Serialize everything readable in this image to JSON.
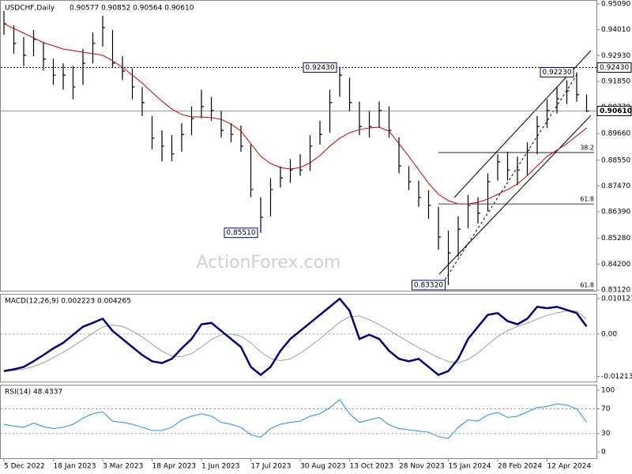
{
  "chart_data": [
    {
      "type": "hlc",
      "title": "USDCHF,Daily",
      "quote": "0.90577 0.90852 0.90564 0.90610",
      "watermark": "ActionForex.com",
      "categories": [
        "5 Dec 2022",
        null,
        null,
        null,
        null,
        "18 Jan 2023",
        null,
        null,
        null,
        null,
        "3 Mar 2023",
        null,
        null,
        null,
        null,
        "18 Apr 2023",
        null,
        null,
        null,
        null,
        "1 Jun 2023",
        null,
        null,
        null,
        null,
        "17 Jul 2023",
        null,
        null,
        null,
        null,
        "30 Aug 2023",
        null,
        null,
        null,
        null,
        "13 Oct 2023",
        null,
        null,
        null,
        null,
        "28 Nov 2023",
        null,
        null,
        null,
        null,
        "15 Jan 2024",
        null,
        null,
        null,
        null,
        "28 Feb 2024",
        null,
        null,
        null,
        null,
        "12 Apr 2024",
        null,
        null,
        null,
        null
      ],
      "high": [
        0.948,
        0.942,
        0.937,
        0.94,
        0.935,
        0.928,
        0.926,
        0.925,
        0.932,
        0.939,
        0.946,
        0.94,
        0.929,
        0.924,
        0.916,
        0.904,
        0.898,
        0.896,
        0.901,
        0.908,
        0.915,
        0.912,
        0.906,
        0.901,
        0.9,
        0.892,
        0.87,
        0.878,
        0.883,
        0.886,
        0.888,
        0.896,
        0.902,
        0.915,
        0.9243,
        0.92,
        0.91,
        0.906,
        0.91,
        0.908,
        0.895,
        0.883,
        0.877,
        0.873,
        0.866,
        0.856,
        0.862,
        0.871,
        0.87,
        0.88,
        0.888,
        0.889,
        0.887,
        0.893,
        0.904,
        0.911,
        0.916,
        0.919,
        0.9223,
        0.913
      ],
      "low": [
        0.938,
        0.93,
        0.925,
        0.929,
        0.923,
        0.917,
        0.915,
        0.911,
        0.917,
        0.926,
        0.933,
        0.924,
        0.919,
        0.911,
        0.904,
        0.89,
        0.885,
        0.885,
        0.889,
        0.896,
        0.903,
        0.902,
        0.895,
        0.893,
        0.889,
        0.87,
        0.8551,
        0.862,
        0.874,
        0.876,
        0.879,
        0.881,
        0.892,
        0.897,
        0.912,
        0.906,
        0.896,
        0.895,
        0.899,
        0.895,
        0.88,
        0.873,
        0.866,
        0.861,
        0.848,
        0.8332,
        0.845,
        0.857,
        0.859,
        0.864,
        0.877,
        0.877,
        0.875,
        0.879,
        0.888,
        0.899,
        0.905,
        0.909,
        0.91,
        0.9056
      ],
      "close": [
        0.9426,
        0.9344,
        0.9294,
        0.936,
        0.9278,
        0.9211,
        0.9211,
        0.9162,
        0.9261,
        0.9344,
        0.941,
        0.9261,
        0.9228,
        0.9162,
        0.9096,
        0.8947,
        0.8914,
        0.8881,
        0.8963,
        0.9029,
        0.9079,
        0.9063,
        0.898,
        0.8963,
        0.8914,
        0.8732,
        0.8616,
        0.8732,
        0.8781,
        0.8814,
        0.8814,
        0.8914,
        0.8963,
        0.9096,
        0.9211,
        0.9096,
        0.8996,
        0.8996,
        0.9063,
        0.898,
        0.8831,
        0.8765,
        0.8699,
        0.8666,
        0.8533,
        0.8467,
        0.8566,
        0.8666,
        0.8633,
        0.8765,
        0.8848,
        0.8814,
        0.8814,
        0.8897,
        0.8996,
        0.9063,
        0.9112,
        0.9145,
        0.9129,
        0.9061
      ],
      "color": "#000000",
      "moving_average": {
        "color": "#cc0000",
        "values": [
          0.9426,
          0.9406,
          0.9387,
          0.9367,
          0.9347,
          0.9334,
          0.932,
          0.9314,
          0.9307,
          0.9301,
          0.9294,
          0.9271,
          0.9244,
          0.9211,
          0.9178,
          0.9139,
          0.9102,
          0.9069,
          0.9046,
          0.9036,
          0.9036,
          0.9033,
          0.9026,
          0.9006,
          0.8977,
          0.8924,
          0.8871,
          0.8841,
          0.8824,
          0.8818,
          0.8824,
          0.8844,
          0.8874,
          0.8914,
          0.8947,
          0.897,
          0.8983,
          0.899,
          0.8993,
          0.8977,
          0.8924,
          0.8871,
          0.8815,
          0.8758,
          0.8712,
          0.8686,
          0.8672,
          0.8672,
          0.8679,
          0.8692,
          0.8712,
          0.8732,
          0.8755,
          0.8791,
          0.8831,
          0.8871,
          0.8897,
          0.8924,
          0.8957,
          0.899
        ]
      },
      "ylim": [
        0.83086,
        0.95255
      ],
      "yticks": [
        {
          "value": 0.9509,
          "label": "0.95090"
        },
        {
          "value": 0.9401,
          "label": "0.94010"
        },
        {
          "value": 0.9293,
          "label": "0.92930"
        },
        {
          "value": 0.9185,
          "label": "0.91850"
        },
        {
          "value": 0.9077,
          "label": "0.90770"
        },
        {
          "value": 0.8966,
          "label": "0.89660"
        },
        {
          "value": 0.8855,
          "label": "0.88550"
        },
        {
          "value": 0.8747,
          "label": "0.87470"
        },
        {
          "value": 0.8639,
          "label": "0.86390"
        },
        {
          "value": 0.8528,
          "label": "0.85280"
        },
        {
          "value": 0.842,
          "label": "0.84200"
        },
        {
          "value": 0.8312,
          "label": "0.83120"
        }
      ],
      "annotations": [
        {
          "text": "0.85510",
          "value": 0.8551
        },
        {
          "text": "0.92430",
          "value": 0.9243
        },
        {
          "text": "0.83320",
          "value": 0.8332
        },
        {
          "text": "0.92230",
          "value": 0.9223
        }
      ],
      "price_markers": [
        {
          "label": "0.92430",
          "value": 0.9243,
          "style": "dashed"
        },
        {
          "label": "0.90610",
          "value": 0.9061,
          "style": "current"
        }
      ],
      "fib_levels": [
        {
          "label": "38.2",
          "value": 0.8887
        },
        {
          "label": "61.8",
          "value": 0.8672
        },
        {
          "label": "61.8",
          "value": 0.8312
        }
      ]
    },
    {
      "type": "line",
      "title": "MACD(12,26,9) 0.002223 0.004265",
      "series": [
        {
          "color": "#000080",
          "values": [
            -0.0106,
            -0.0101,
            -0.0094,
            -0.0078,
            -0.006,
            -0.0041,
            -0.0025,
            -0.0002,
            0.0021,
            0.0032,
            0.0044,
            0.0009,
            -0.0014,
            -0.0037,
            -0.006,
            -0.0078,
            -0.0083,
            -0.0071,
            -0.0041,
            -0.0014,
            0.0028,
            0.0032,
            0.0009,
            -0.0014,
            -0.0037,
            -0.0094,
            -0.0117,
            -0.0094,
            -0.0048,
            -0.0014,
            0.0009,
            0.0032,
            0.0055,
            0.0078,
            0.0101,
            0.0067,
            -0.0014,
            -0.0002,
            -0.0014,
            -0.0048,
            -0.0071,
            -0.0078,
            -0.0071,
            -0.0094,
            -0.0117,
            -0.0106,
            -0.0071,
            -0.0014,
            0.0021,
            0.0055,
            0.006,
            0.0037,
            0.0028,
            0.0044,
            0.0078,
            0.0074,
            0.0078,
            0.0069,
            0.006,
            0.0022
          ]
        },
        {
          "color": "#a0a0a0",
          "values": [
            -0.0105,
            -0.0104,
            -0.01,
            -0.0093,
            -0.0082,
            -0.0068,
            -0.0052,
            -0.0035,
            -0.0016,
            0.0003,
            0.002,
            0.0026,
            0.0022,
            0.0009,
            -0.0008,
            -0.0029,
            -0.0049,
            -0.0063,
            -0.0065,
            -0.0056,
            -0.0037,
            -0.0016,
            -0.0002,
            0.0,
            -0.0006,
            -0.0025,
            -0.0051,
            -0.007,
            -0.0076,
            -0.0071,
            -0.0055,
            -0.0035,
            -0.0013,
            0.001,
            0.0034,
            0.005,
            0.0052,
            0.0041,
            0.0027,
            0.0011,
            -0.0006,
            -0.0023,
            -0.0039,
            -0.0053,
            -0.0067,
            -0.0079,
            -0.0082,
            -0.0073,
            -0.0054,
            -0.003,
            -0.0007,
            0.001,
            0.0022,
            0.0031,
            0.0043,
            0.0053,
            0.0061,
            0.0066,
            0.0066,
            0.0043
          ]
        }
      ],
      "ylim": [
        -0.0136,
        0.0115
      ],
      "yticks": [
        0.010121,
        {
          "value": 0,
          "label": "0.00"
        },
        -0.012139
      ],
      "guide_lines": [
        0
      ]
    },
    {
      "type": "line",
      "title": "RSI(14) 48.4337",
      "series": [
        {
          "color": "#1e90ff",
          "values": [
            45,
            42,
            40,
            47,
            41,
            38,
            40,
            45,
            55,
            62,
            65,
            50,
            48,
            45,
            40,
            35,
            35,
            40,
            52,
            58,
            62,
            58,
            48,
            45,
            40,
            28,
            24,
            38,
            45,
            48,
            50,
            58,
            62,
            72,
            85,
            62,
            48,
            52,
            56,
            44,
            38,
            36,
            34,
            32,
            25,
            22,
            40,
            52,
            50,
            60,
            64,
            56,
            58,
            65,
            72,
            74,
            78,
            76,
            70,
            48.43
          ]
        }
      ],
      "ylim": [
        -10,
        109
      ],
      "yticks": [
        100,
        70,
        30,
        0
      ],
      "guide_lines": [
        70,
        30
      ]
    }
  ]
}
